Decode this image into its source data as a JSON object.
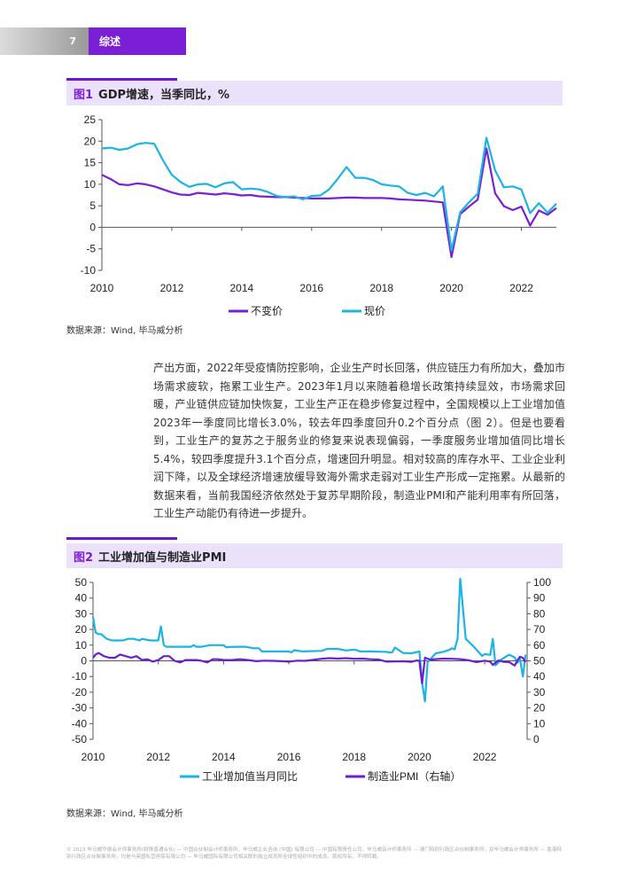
{
  "header": {
    "page_number": "7",
    "section": "综述"
  },
  "figure1": {
    "number": "图1",
    "title": "GDP增速，当季同比，%",
    "source": "数据来源：Wind, 毕马威分析",
    "chart_data": {
      "type": "line",
      "xlim": [
        2010,
        2023.0
      ],
      "ylim": [
        -10,
        25
      ],
      "yticks": [
        -10,
        -5,
        0,
        5,
        10,
        15,
        20,
        25
      ],
      "xticks": [
        2010,
        2012,
        2014,
        2016,
        2018,
        2020,
        2022
      ],
      "legend": "bottom",
      "series": [
        {
          "name": "不变价",
          "color": "#7a1fd6",
          "x": [
            2010.0,
            2010.25,
            2010.5,
            2010.75,
            2011.0,
            2011.25,
            2011.5,
            2011.75,
            2012.0,
            2012.25,
            2012.5,
            2012.75,
            2013.0,
            2013.25,
            2013.5,
            2013.75,
            2014.0,
            2014.25,
            2014.5,
            2014.75,
            2015.0,
            2015.25,
            2015.5,
            2015.75,
            2016.0,
            2016.25,
            2016.5,
            2016.75,
            2017.0,
            2017.25,
            2017.5,
            2017.75,
            2018.0,
            2018.25,
            2018.5,
            2018.75,
            2019.0,
            2019.25,
            2019.5,
            2019.75,
            2020.0,
            2020.25,
            2020.5,
            2020.75,
            2021.0,
            2021.25,
            2021.5,
            2021.75,
            2022.0,
            2022.25,
            2022.5,
            2022.75,
            2023.0
          ],
          "values": [
            12.2,
            11.2,
            10.0,
            9.8,
            10.2,
            10.0,
            9.5,
            8.8,
            8.1,
            7.6,
            7.5,
            8.0,
            7.8,
            7.6,
            7.9,
            7.7,
            7.4,
            7.5,
            7.2,
            7.1,
            7.0,
            7.0,
            6.9,
            6.8,
            6.7,
            6.7,
            6.7,
            6.8,
            6.9,
            6.9,
            6.8,
            6.8,
            6.8,
            6.7,
            6.5,
            6.4,
            6.3,
            6.2,
            6.0,
            5.8,
            -6.9,
            3.1,
            4.8,
            6.4,
            18.3,
            7.9,
            4.9,
            4.0,
            4.8,
            0.4,
            3.9,
            2.9,
            4.5
          ]
        },
        {
          "name": "现价",
          "color": "#1ab4e6",
          "x": [
            2010.0,
            2010.25,
            2010.5,
            2010.75,
            2011.0,
            2011.25,
            2011.5,
            2011.75,
            2012.0,
            2012.25,
            2012.5,
            2012.75,
            2013.0,
            2013.25,
            2013.5,
            2013.75,
            2014.0,
            2014.25,
            2014.5,
            2014.75,
            2015.0,
            2015.25,
            2015.5,
            2015.75,
            2016.0,
            2016.25,
            2016.5,
            2016.75,
            2017.0,
            2017.25,
            2017.5,
            2017.75,
            2018.0,
            2018.25,
            2018.5,
            2018.75,
            2019.0,
            2019.25,
            2019.5,
            2019.75,
            2020.0,
            2020.25,
            2020.5,
            2020.75,
            2021.0,
            2021.25,
            2021.5,
            2021.75,
            2022.0,
            2022.25,
            2022.5,
            2022.75,
            2023.0
          ],
          "values": [
            18.3,
            18.5,
            18.0,
            18.3,
            19.3,
            19.6,
            19.4,
            15.5,
            12.2,
            10.5,
            9.4,
            10.0,
            10.1,
            9.3,
            10.2,
            10.5,
            8.8,
            9.0,
            8.8,
            8.2,
            7.3,
            7.0,
            7.2,
            6.5,
            7.3,
            7.4,
            8.8,
            11.3,
            14.0,
            11.5,
            11.5,
            11.0,
            10.0,
            9.7,
            9.5,
            8.0,
            7.5,
            8.0,
            7.2,
            9.5,
            -5.3,
            3.5,
            5.8,
            7.8,
            20.8,
            13.2,
            9.3,
            9.5,
            8.8,
            3.3,
            5.6,
            3.4,
            5.5
          ]
        }
      ]
    }
  },
  "paragraph": "产出方面，2022年受疫情防控影响，企业生产时长回落，供应链压力有所加大，叠加市场需求疲软，拖累工业生产。2023年1月以来随着稳增长政策持续显效，市场需求回暖，产业链供应链加快恢复，工业生产正在稳步修复过程中，全国规模以上工业增加值2023年一季度同比增长3.0%，较去年四季度回升0.2个百分点（图 2）。但是也要看到，工业生产的复苏之于服务业的修复来说表现偏弱，一季度服务业增加值同比增长5.4%，较四季度提升3.1个百分点，增速回升明显。相对较高的库存水平、工业企业利润下降，以及全球经济增速放缓导致海外需求走弱对工业生产形成一定拖累。从最新的数据来看，当前我国经济依然处于复苏早期阶段，制造业PMI和产能利用率有所回落，工业生产动能仍有待进一步提升。",
  "figure2": {
    "number": "图2",
    "title": "工业增加值与制造业PMI",
    "source": "数据来源：Wind, 毕马威分析",
    "chart_data": {
      "type": "line",
      "xlim": [
        2010,
        2023.3
      ],
      "ylim": [
        -50,
        50
      ],
      "ylim_right": [
        0,
        100
      ],
      "yticks": [
        -50,
        -40,
        -30,
        -20,
        -10,
        0,
        10,
        20,
        30,
        40,
        50
      ],
      "yticks_right": [
        0,
        10,
        20,
        30,
        40,
        50,
        60,
        70,
        80,
        90,
        100
      ],
      "xticks": [
        2010,
        2012,
        2014,
        2016,
        2018,
        2020,
        2022
      ],
      "legend": "bottom",
      "series": [
        {
          "name": "工业增加值当月同比",
          "color": "#1ab4e6",
          "axis": "left",
          "x": [
            2010.0,
            2010.08,
            2010.17,
            2010.25,
            2010.42,
            2010.58,
            2010.75,
            2010.92,
            2011.08,
            2011.25,
            2011.42,
            2011.5,
            2011.75,
            2011.92,
            2012.0,
            2012.08,
            2012.17,
            2012.25,
            2012.5,
            2012.75,
            2013.0,
            2013.08,
            2013.17,
            2013.33,
            2013.58,
            2013.75,
            2014.0,
            2014.08,
            2014.17,
            2014.42,
            2014.67,
            2014.92,
            2015.08,
            2015.17,
            2015.42,
            2015.75,
            2016.0,
            2016.08,
            2016.17,
            2016.42,
            2016.75,
            2017.0,
            2017.17,
            2017.5,
            2017.75,
            2018.0,
            2018.08,
            2018.17,
            2018.5,
            2018.75,
            2019.0,
            2019.08,
            2019.17,
            2019.25,
            2019.5,
            2019.75,
            2020.0,
            2020.08,
            2020.17,
            2020.25,
            2020.5,
            2020.75,
            2020.92,
            2021.0,
            2021.08,
            2021.17,
            2021.25,
            2021.42,
            2021.67,
            2021.92,
            2022.0,
            2022.17,
            2022.25,
            2022.33,
            2022.5,
            2022.75,
            2022.92,
            2023.0,
            2023.08,
            2023.17,
            2023.25
          ],
          "values": [
            28,
            18,
            17,
            17,
            14,
            13,
            13,
            13,
            14,
            14,
            13,
            14,
            13,
            13,
            13,
            22,
            10,
            9,
            9,
            9,
            9,
            10,
            9,
            9,
            10,
            10,
            10,
            8.6,
            8.8,
            9,
            9,
            8,
            8,
            6,
            6,
            6,
            6,
            5.4,
            6.8,
            6,
            6.2,
            6.3,
            7.6,
            7.6,
            6.6,
            7.2,
            6.8,
            6,
            6,
            5.8,
            5.7,
            5.3,
            5.5,
            8.5,
            5,
            4.8,
            6,
            -13.5,
            -25.9,
            -1,
            4.8,
            5.8,
            7,
            8,
            7.3,
            14.1,
            52.3,
            14,
            9,
            3.1,
            4.3,
            3.8,
            14,
            -2.9,
            0.7,
            3.9,
            2.2,
            -1.3,
            1.3,
            -10,
            3.9
          ]
        },
        {
          "name": "制造业PMI（右轴）",
          "color": "#6a1fd0",
          "axis": "right",
          "x": [
            2010.0,
            2010.08,
            2010.17,
            2010.33,
            2010.5,
            2010.67,
            2010.83,
            2011.0,
            2011.17,
            2011.33,
            2011.5,
            2011.67,
            2011.83,
            2012.0,
            2012.17,
            2012.33,
            2012.5,
            2012.67,
            2012.83,
            2013.0,
            2013.17,
            2013.33,
            2013.5,
            2013.67,
            2013.83,
            2014.0,
            2014.25,
            2014.5,
            2014.75,
            2015.0,
            2015.25,
            2015.5,
            2015.75,
            2016.0,
            2016.25,
            2016.5,
            2016.75,
            2017.0,
            2017.25,
            2017.5,
            2017.75,
            2018.0,
            2018.25,
            2018.5,
            2018.75,
            2019.0,
            2019.25,
            2019.5,
            2019.75,
            2019.92,
            2020.0,
            2020.08,
            2020.17,
            2020.33,
            2020.5,
            2020.75,
            2021.0,
            2021.25,
            2021.5,
            2021.75,
            2022.0,
            2022.17,
            2022.25,
            2022.42,
            2022.58,
            2022.75,
            2022.92,
            2023.0,
            2023.08,
            2023.17,
            2023.25
          ],
          "values": [
            52,
            54,
            55,
            53,
            52,
            52,
            54,
            53,
            52,
            53,
            50.5,
            51,
            49.5,
            50.5,
            53,
            53,
            50,
            49,
            50.5,
            50.5,
            50.5,
            50,
            49,
            51,
            51,
            50.5,
            50.5,
            51,
            50.5,
            49.8,
            50.1,
            50,
            49.8,
            49.5,
            50.1,
            50,
            50.6,
            51.3,
            51.7,
            51.4,
            51.7,
            51.3,
            51.4,
            51,
            50.8,
            49.5,
            49.6,
            49.7,
            49.3,
            50.2,
            50,
            35.7,
            52,
            50.8,
            51.1,
            51.4,
            51.3,
            51.1,
            50.4,
            49.2,
            50.1,
            49.5,
            47.4,
            50.2,
            49.4,
            49.2,
            47,
            50.1,
            52.6,
            51.9,
            49.2
          ]
        }
      ]
    }
  },
  "footer": "© 2023 毕马威华振会计师事务所(特殊普通合伙) — 中国合伙制会计师事务所，毕马威企业咨询 (中国) 有限公司 — 中国有限责任公司，毕马威会计师事务所 — 澳门特别行政区合伙制事务所，及毕马威会计师事务所 — 香港特别行政区合伙制事务所，均是与英国私营担保有限公司 — 毕马威国际有限公司相关联的独立成员所全球性组织中的成员。版权所有，不得转载。"
}
